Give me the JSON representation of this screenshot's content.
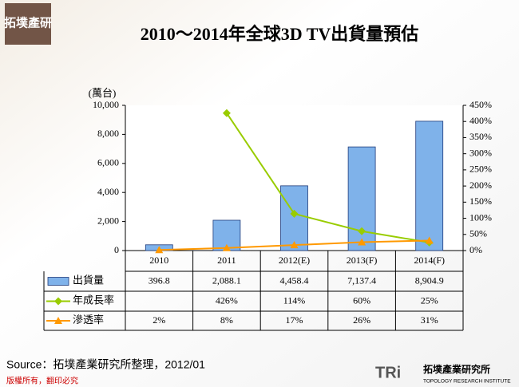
{
  "logo": {
    "top": "拓墣產研",
    "name": "拓墣產業研究所",
    "english": "TOPOLOGY RESEARCH INSTITUTE",
    "mark": "TRi",
    "copyright": "版權所有，翻印必究"
  },
  "source": "Source：拓墣產業研究所整理，2012/01",
  "chart_data": {
    "type": "bar",
    "title": "2010～2014年全球3D TV出貨量預估",
    "y_label": "(萬台)",
    "categories": [
      "2010",
      "2011",
      "2012(E)",
      "2013(F)",
      "2014(F)"
    ],
    "ylim": [
      0,
      10000
    ],
    "yticks": [
      0,
      {
        "value": 2000,
        "label": "2,000"
      },
      {
        "value": 4000,
        "label": "4,000"
      },
      {
        "value": 6000,
        "label": "6,000"
      },
      {
        "value": 8000,
        "label": "8,000"
      },
      {
        "value": 10000,
        "label": "10,000"
      }
    ],
    "y2lim": [
      0,
      450
    ],
    "y2ticks": [
      {
        "value": 0,
        "label": "0%"
      },
      {
        "value": 50,
        "label": "50%"
      },
      {
        "value": 100,
        "label": "100%"
      },
      {
        "value": 150,
        "label": "150%"
      },
      {
        "value": 200,
        "label": "200%"
      },
      {
        "value": 250,
        "label": "250%"
      },
      {
        "value": 300,
        "label": "300%"
      },
      {
        "value": 350,
        "label": "350%"
      },
      {
        "value": 400,
        "label": "400%"
      },
      {
        "value": 450,
        "label": "450%"
      }
    ],
    "series": [
      {
        "name": "出貨量",
        "type": "bar",
        "color": "#7fb2ea",
        "values": [
          396.8,
          2088.1,
          4458.4,
          7137.4,
          8904.9
        ],
        "value_labels": [
          "396.8",
          "2,088.1",
          "4,458.4",
          "7,137.4",
          "8,904.9"
        ]
      },
      {
        "name": "年成長率",
        "type": "line",
        "axis": "y2",
        "color": "#99cc00",
        "marker": "diamond",
        "values": [
          null,
          426,
          114,
          60,
          25
        ],
        "value_labels": [
          null,
          "426%",
          "114%",
          "60%",
          "25%"
        ]
      },
      {
        "name": "滲透率",
        "type": "line",
        "axis": "y2",
        "color": "#ff9900",
        "marker": "triangle",
        "values": [
          2,
          8,
          17,
          26,
          31
        ],
        "value_labels": [
          "2%",
          "8%",
          "17%",
          "26%",
          "31%"
        ]
      }
    ]
  }
}
